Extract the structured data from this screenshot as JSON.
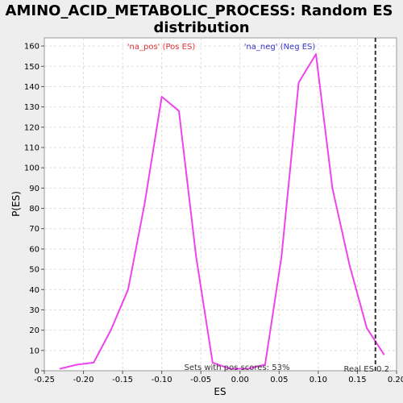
{
  "chart_data": {
    "type": "line",
    "title_line1": "AMINO_ACID_METABOLIC_PROCESS: Random ES",
    "title_line2": "distribution",
    "xlabel": "ES",
    "ylabel": "P(ES)",
    "xlim": [
      -0.25,
      0.2
    ],
    "ylim": [
      0,
      164
    ],
    "x_ticks": [
      -0.25,
      -0.2,
      -0.15,
      -0.1,
      -0.05,
      0.0,
      0.05,
      0.1,
      0.15,
      0.2
    ],
    "x_tick_labels": [
      "-0.25",
      "-0.20",
      "-0.15",
      "-0.10",
      "-0.05",
      "0.00",
      "0.05",
      "0.10",
      "0.15",
      "0.20"
    ],
    "y_ticks": [
      0,
      10,
      20,
      30,
      40,
      50,
      60,
      70,
      80,
      90,
      100,
      110,
      120,
      130,
      140,
      150,
      160
    ],
    "grid": true,
    "series": [
      {
        "color": "#ee44ee",
        "x": [
          -0.23,
          -0.208,
          -0.187,
          -0.165,
          -0.143,
          -0.122,
          -0.1,
          -0.078,
          -0.056,
          -0.035,
          -0.013,
          0.01,
          0.032,
          0.053,
          0.075,
          0.097,
          0.118,
          0.14,
          0.162,
          0.184
        ],
        "y": [
          1,
          3,
          4,
          20,
          40,
          82,
          135,
          128,
          56,
          4,
          1,
          1,
          3,
          56,
          142,
          156,
          90,
          52,
          21,
          8
        ]
      }
    ],
    "real_es": 0.173,
    "annotations": {
      "pos_label": "'na_pos' (Pos ES)",
      "neg_label": "'na_neg' (Neg ES)",
      "sets_label": "Sets with pos scores: 53%",
      "real_es_label": "Real ES 0.2"
    },
    "colors": {
      "pos": "#dd3333",
      "neg": "#3333cc",
      "line": "#ee44ee",
      "grid": "#dddddd"
    }
  }
}
